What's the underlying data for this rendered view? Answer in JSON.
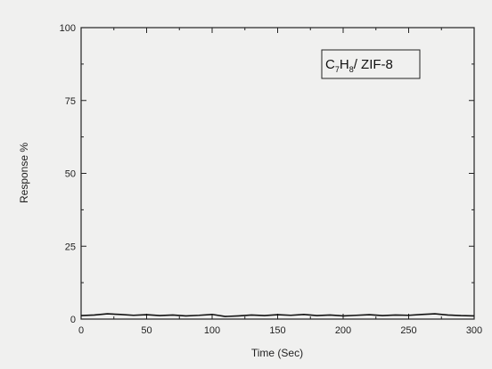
{
  "chart_data": {
    "type": "line",
    "title": "",
    "xlabel": "Time (Sec)",
    "ylabel": "Response %",
    "xlim": [
      0,
      300
    ],
    "ylim": [
      0,
      100
    ],
    "x_ticks": [
      0,
      50,
      100,
      150,
      200,
      250,
      300
    ],
    "y_ticks": [
      0,
      25,
      50,
      75,
      100
    ],
    "x_tick_labels": [
      "0",
      "50",
      "100",
      "150",
      "200",
      "250",
      "300"
    ],
    "y_tick_labels": [
      "0",
      "25",
      "50",
      "75",
      "100"
    ],
    "grid": false,
    "legend_position": "top-right",
    "annotation": {
      "base1": "C",
      "sub1": "7",
      "base2": "H",
      "sub2": "8",
      "rest": "/ ZIF-8"
    },
    "series": [
      {
        "color": "#111111",
        "x": [
          0,
          10,
          20,
          30,
          40,
          50,
          60,
          70,
          80,
          90,
          100,
          110,
          120,
          130,
          140,
          150,
          160,
          170,
          180,
          190,
          200,
          210,
          220,
          230,
          240,
          250,
          260,
          270,
          280,
          290,
          300
        ],
        "y": [
          1.2,
          1.4,
          1.8,
          1.6,
          1.3,
          1.5,
          1.2,
          1.4,
          1.1,
          1.3,
          1.6,
          0.9,
          1.1,
          1.4,
          1.2,
          1.5,
          1.3,
          1.6,
          1.2,
          1.4,
          1.1,
          1.3,
          1.5,
          1.2,
          1.4,
          1.3,
          1.6,
          1.8,
          1.4,
          1.2,
          1.1
        ]
      }
    ]
  }
}
